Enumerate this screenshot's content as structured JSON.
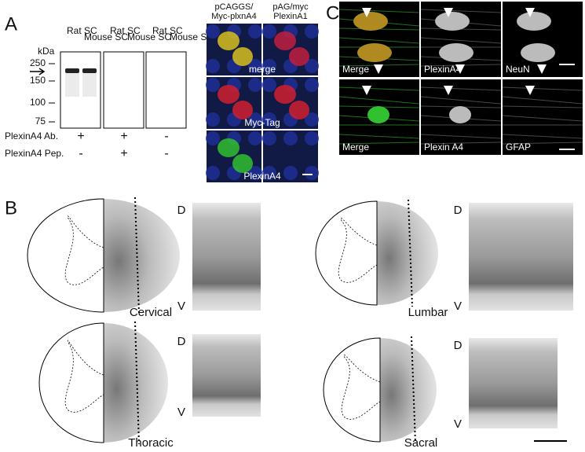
{
  "panel_a": {
    "label": "A",
    "unit": "kDa",
    "markers": [
      250,
      150,
      100,
      75
    ],
    "blots": [
      {
        "lanes": [
          "Rat SC",
          "Mouse SC"
        ]
      },
      {
        "lanes": [
          "Rat SC",
          "Mouse SC"
        ]
      },
      {
        "lanes": [
          "Rat SC",
          "Mouse SC"
        ]
      }
    ],
    "conditions": [
      {
        "name": "PlexinA4 Ab.",
        "signs": [
          "+",
          "+",
          "-"
        ]
      },
      {
        "name": "PlexinA4 Pep.",
        "signs": [
          "-",
          "+",
          "-"
        ]
      }
    ],
    "columns": [
      [
        "pCAGGS/",
        "Myc-plxnA4"
      ],
      [
        "pAG/myc",
        "PlexinA1"
      ]
    ],
    "rows": [
      "merge",
      "Myc-Tag",
      "PlexinA4"
    ]
  },
  "panel_b": {
    "label": "B",
    "sections": [
      {
        "name": "Cervical",
        "dorsal": "D",
        "ventral": "V"
      },
      {
        "name": "Lumbar",
        "dorsal": "D",
        "ventral": "V"
      },
      {
        "name": "Thoracic",
        "dorsal": "D",
        "ventral": "V"
      },
      {
        "name": "Sacral",
        "dorsal": "D",
        "ventral": "V"
      }
    ]
  },
  "panel_c": {
    "label": "C",
    "rows": [
      [
        "Merge",
        "PlexinA4",
        "NeuN"
      ],
      [
        "Merge",
        "Plexin A4",
        "GFAP"
      ]
    ]
  }
}
